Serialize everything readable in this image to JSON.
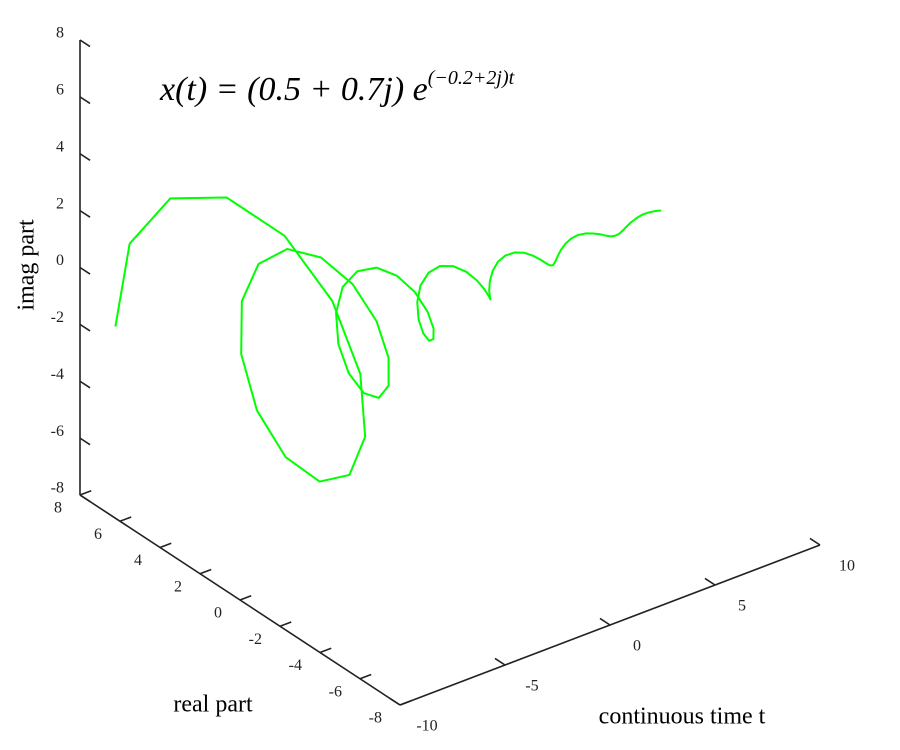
{
  "chart_data": {
    "type": "line3d",
    "title": "x(t) = (0.5 + 0.7j) e",
    "title_superscript": "(−0.2+2j)t",
    "xlabel": "continuous time t",
    "real_label": "real part",
    "imag_label": "imag part",
    "x": [
      -10,
      -9.75,
      -9.5,
      -9.25,
      -9,
      -8.75,
      -8.5,
      -8.25,
      -8,
      -7.75,
      -7.5,
      -7.25,
      -7,
      -6.75,
      -6.5,
      -6.25,
      -6,
      -5.75,
      -5.5,
      -5.25,
      -5,
      -4.75,
      -4.5,
      -4.25,
      -4,
      -3.75,
      -3.5,
      -3.25,
      -3,
      -2.75,
      -2.5,
      -2.25,
      -2,
      -1.75,
      -1.5,
      -1.25,
      -1,
      -0.75,
      -0.5,
      -0.25,
      0,
      0.25,
      0.5,
      0.75,
      1,
      1.25,
      1.5,
      1.75,
      2,
      2.25,
      2.5,
      2.75,
      3,
      3.25,
      3.5,
      3.75,
      4,
      4.25,
      4.5,
      4.75,
      5,
      5.25,
      5.5,
      5.75,
      6,
      6.25,
      6.5,
      6.75,
      7,
      7.25,
      7.5,
      7.75,
      8,
      8.25,
      8.5,
      8.75,
      9,
      9.25,
      9.5,
      9.75,
      10
    ],
    "series": [
      {
        "color": "#00ff00",
        "real": [
          6.23,
          5.78,
          4.01,
          1.46,
          -1.18,
          -3.3,
          -4.44,
          -4.42,
          -3.37,
          -1.62,
          0.34,
          2.04,
          3.09,
          3.32,
          2.75,
          1.58,
          0.15,
          -1.17,
          -2.1,
          -2.44,
          -2.18,
          -1.43,
          -0.41,
          0.6,
          1.38,
          1.76,
          1.69,
          1.22,
          0.52,
          -0.24,
          -0.87,
          -1.24,
          -1.28,
          -1.01,
          -0.53,
          0.02,
          0.52,
          0.85,
          0.95,
          0.81,
          0.5,
          0.1,
          -0.29,
          -0.57,
          -0.69,
          -0.64,
          -0.44,
          -0.16,
          0.14,
          0.37,
          0.49,
          0.49,
          0.37,
          0.18,
          -0.04,
          -0.23,
          -0.35,
          -0.37,
          -0.3,
          -0.17,
          -0.01,
          0.13,
          0.24,
          0.27,
          0.24,
          0.16,
          0.04,
          -0.07,
          -0.15,
          -0.2,
          -0.19,
          -0.13,
          -0.06,
          0.03,
          0.1,
          0.14,
          0.14,
          0.11,
          0.06,
          0,
          -0.06
        ],
        "imag": [
          -1.26,
          1.79,
          4.13,
          5.27,
          5.07,
          3.69,
          1.58,
          -0.71,
          -2.61,
          -3.72,
          -3.84,
          -3.05,
          -1.62,
          0.06,
          1.56,
          2.56,
          2.85,
          2.45,
          1.51,
          0.31,
          -0.86,
          -1.71,
          -2.08,
          -1.92,
          -1.33,
          -0.48,
          0.4,
          1.1,
          1.48,
          1.47,
          1.12,
          0.53,
          -0.12,
          -0.68,
          -1.03,
          -1.1,
          -0.91,
          -0.52,
          -0.05,
          0.39,
          0.7,
          0.81,
          0.72,
          0.47,
          0.13,
          -0.2,
          -0.46,
          -0.59,
          -0.56,
          -0.41,
          -0.17,
          0.08,
          0.29,
          0.41,
          0.43,
          0.34,
          0.18,
          -0.01,
          -0.18,
          -0.29,
          -0.32,
          -0.27,
          -0.17,
          -0.03,
          0.1,
          0.19,
          0.23,
          0.21,
          0.15,
          0.05,
          -0.05,
          -0.12,
          -0.16,
          -0.16,
          -0.12,
          -0.06,
          0.01,
          0.08,
          0.11,
          0.12,
          0.1
        ]
      }
    ],
    "xlim": [
      -10,
      10
    ],
    "xticks": [
      -10,
      -5,
      0,
      5,
      10
    ],
    "real_lim": [
      -8,
      8
    ],
    "real_ticks": [
      -8,
      -6,
      -4,
      -2,
      0,
      2,
      4,
      6,
      8
    ],
    "imag_lim": [
      -8,
      8
    ],
    "imag_ticks": [
      -8,
      -6,
      -4,
      -2,
      0,
      2,
      4,
      6,
      8
    ]
  }
}
